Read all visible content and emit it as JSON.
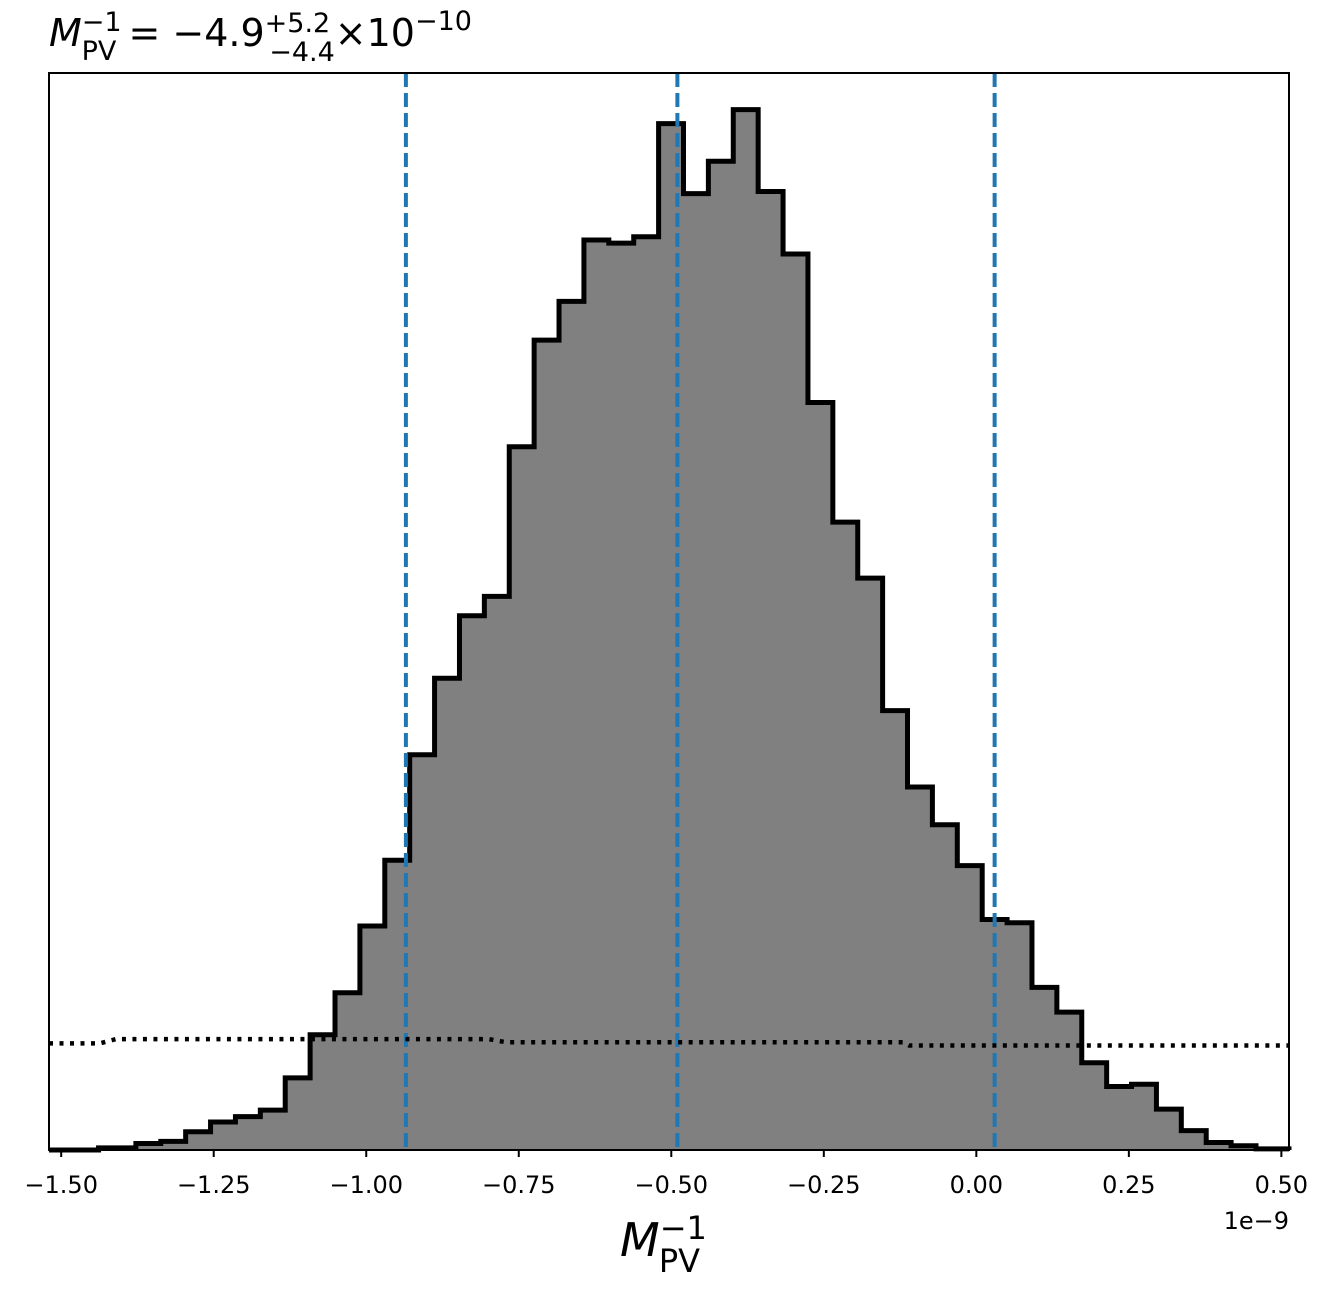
{
  "chart_data": {
    "type": "histogram",
    "title": {
      "symbol": "M",
      "sub": "PV",
      "sup": "−1",
      "equals": " = −4.9",
      "err_up": "+5.2",
      "err_down": "−4.4",
      "times": "×",
      "base": "10",
      "exponent": "−10"
    },
    "xlabel": {
      "symbol": "M",
      "sub": "PV",
      "sup": "−1"
    },
    "x_offset_label": "1e−9",
    "x_scale": 1e-09,
    "xlim": [
      -1.52,
      0.5125
    ],
    "ylim": [
      0,
      1.0
    ],
    "x_ticks": [
      -1.5,
      -1.25,
      -1.0,
      -0.75,
      -0.5,
      -0.25,
      0.0,
      0.25,
      0.5
    ],
    "x_tick_labels": [
      "−1.50",
      "−1.25",
      "−1.00",
      "−0.75",
      "−0.50",
      "−0.25",
      "0.00",
      "0.25",
      "0.50"
    ],
    "y_ticks_visible": false,
    "bin_edges": [
      -1.52,
      -1.4388,
      -1.3776,
      -1.3368,
      -1.296,
      -1.2552,
      -1.2144,
      -1.1736,
      -1.1328,
      -1.092,
      -1.0512,
      -1.0104,
      -0.9696,
      -0.9288,
      -0.888,
      -0.8472,
      -0.8064,
      -0.7656,
      -0.7248,
      -0.684,
      -0.6432,
      -0.6024,
      -0.5616,
      -0.5208,
      -0.48,
      -0.4392,
      -0.3984,
      -0.3576,
      -0.3168,
      -0.276,
      -0.2352,
      -0.1944,
      -0.1536,
      -0.1128,
      -0.072,
      -0.0312,
      0.0096,
      0.0504,
      0.0912,
      0.132,
      0.1728,
      0.2136,
      0.2544,
      0.2952,
      0.336,
      0.3768,
      0.4176,
      0.4584,
      0.5125
    ],
    "counts": [
      0.0,
      0.002,
      0.006,
      0.008,
      0.017,
      0.026,
      0.031,
      0.037,
      0.067,
      0.107,
      0.146,
      0.208,
      0.269,
      0.367,
      0.438,
      0.496,
      0.514,
      0.653,
      0.752,
      0.788,
      0.845,
      0.842,
      0.848,
      0.953,
      0.888,
      0.918,
      0.966,
      0.89,
      0.832,
      0.694,
      0.583,
      0.531,
      0.408,
      0.337,
      0.302,
      0.264,
      0.214,
      0.211,
      0.151,
      0.128,
      0.081,
      0.059,
      0.061,
      0.038,
      0.018,
      0.007,
      0.004,
      0.001
    ],
    "fill_color": "#808080",
    "edge_color": "#000000",
    "quantile_lines": [
      -0.935,
      -0.49,
      0.03
    ],
    "quantile_color": "#1f77b4",
    "prior_x": [
      -1.52,
      -1.437,
      -1.41,
      -0.8,
      -0.77,
      -0.12,
      -0.11,
      0.5125
    ],
    "prior_y": [
      0.099,
      0.099,
      0.103,
      0.103,
      0.1,
      0.1,
      0.097,
      0.097
    ],
    "prior_style": "dotted",
    "grid": false,
    "legend": "none"
  }
}
